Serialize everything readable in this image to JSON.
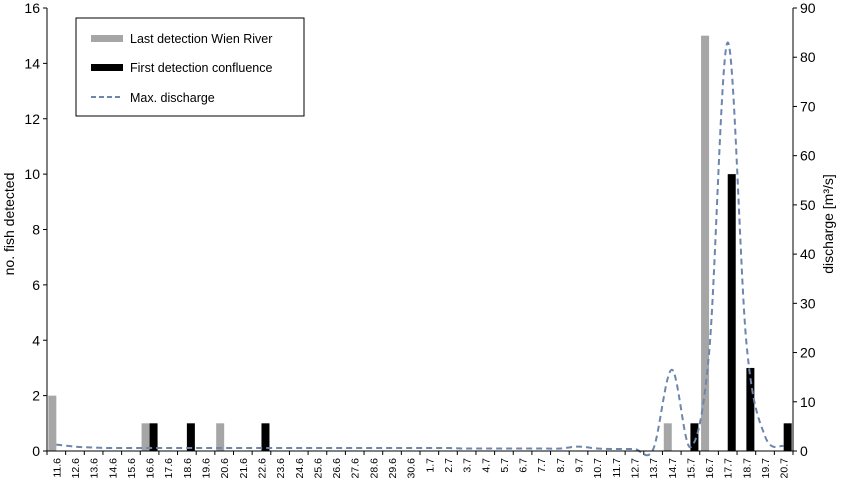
{
  "chart_data": {
    "type": "bar",
    "title": "",
    "ylabel_left": "no. fish detected",
    "ylabel_right": "discharge [m³/s]",
    "ylim_left": [
      0,
      16
    ],
    "yticks_left": [
      0,
      2,
      4,
      6,
      8,
      10,
      12,
      14,
      16
    ],
    "ylim_right": [
      0,
      90
    ],
    "yticks_right": [
      0,
      10,
      20,
      30,
      40,
      50,
      60,
      70,
      80,
      90
    ],
    "grid": false,
    "legend_position": "top-left",
    "categories": [
      "11.6",
      "12.6",
      "13.6",
      "14.6",
      "15.6",
      "16.6",
      "17.6",
      "18.6",
      "19.6",
      "20.6",
      "21.6",
      "22.6",
      "23.6",
      "24.6",
      "25.6",
      "26.6",
      "27.6",
      "28.6",
      "29.6",
      "30.6",
      "1.7",
      "2.7",
      "3.7",
      "4.7",
      "5.7",
      "6.7",
      "7.7",
      "8.7",
      "9.7",
      "10.7",
      "11.7",
      "12.7",
      "13.7",
      "14.7",
      "15.7",
      "16.7",
      "17.7",
      "18.7",
      "19.7",
      "20.7"
    ],
    "xtick_labels": [
      "11.6",
      "12.6",
      "13.6",
      "14.6",
      "15.6",
      "16.6",
      "17.6",
      "18.6",
      "19.6",
      "20.6",
      "21.6",
      "22.6",
      "23.6",
      "24.6",
      "25.6",
      "26.6",
      "27.6",
      "28.6",
      "29.6",
      "30.6",
      "1.7",
      "2.7",
      "3.7",
      "4.7",
      "5.7",
      "6.7",
      "7.7",
      "8.7",
      "9.7",
      "10.7",
      "11.7",
      "12.7",
      "13.7",
      "14.7",
      "15.7",
      "16.7",
      "17.7",
      "18.7",
      "19.7",
      "20.7"
    ],
    "series": [
      {
        "name": "Last detection Wien River",
        "kind": "bar",
        "axis": "left",
        "color": "#a6a6a6",
        "values": [
          2,
          0,
          0,
          0,
          0,
          1,
          0,
          0,
          0,
          1,
          0,
          0,
          0,
          0,
          0,
          0,
          0,
          0,
          0,
          0,
          0,
          0,
          0,
          0,
          0,
          0,
          0,
          0,
          0,
          0,
          0,
          0,
          0,
          1,
          0,
          15,
          0,
          0,
          0,
          0
        ]
      },
      {
        "name": "First detection confluence",
        "kind": "bar",
        "axis": "left",
        "color": "#000000",
        "values": [
          0,
          0,
          0,
          0,
          0,
          1,
          0,
          1,
          0,
          0,
          0,
          1,
          0,
          0,
          0,
          0,
          0,
          0,
          0,
          0,
          0,
          0,
          0,
          0,
          0,
          0,
          0,
          0,
          0,
          0,
          0,
          0,
          0,
          0,
          1,
          0,
          10,
          3,
          0,
          1
        ]
      },
      {
        "name": "Max. discharge",
        "kind": "line",
        "style": "dashed",
        "axis": "right",
        "color": "#6d86ad",
        "values": [
          1.3,
          0.9,
          0.7,
          0.6,
          0.6,
          0.6,
          0.6,
          0.6,
          0.6,
          0.6,
          0.6,
          0.6,
          0.6,
          0.6,
          0.6,
          0.6,
          0.6,
          0.6,
          0.6,
          0.6,
          0.6,
          0.6,
          0.5,
          0.5,
          0.5,
          0.5,
          0.5,
          0.5,
          0.9,
          0.5,
          0.4,
          0.4,
          0.3,
          16.5,
          0.8,
          20,
          83,
          22,
          3,
          1
        ]
      }
    ]
  }
}
